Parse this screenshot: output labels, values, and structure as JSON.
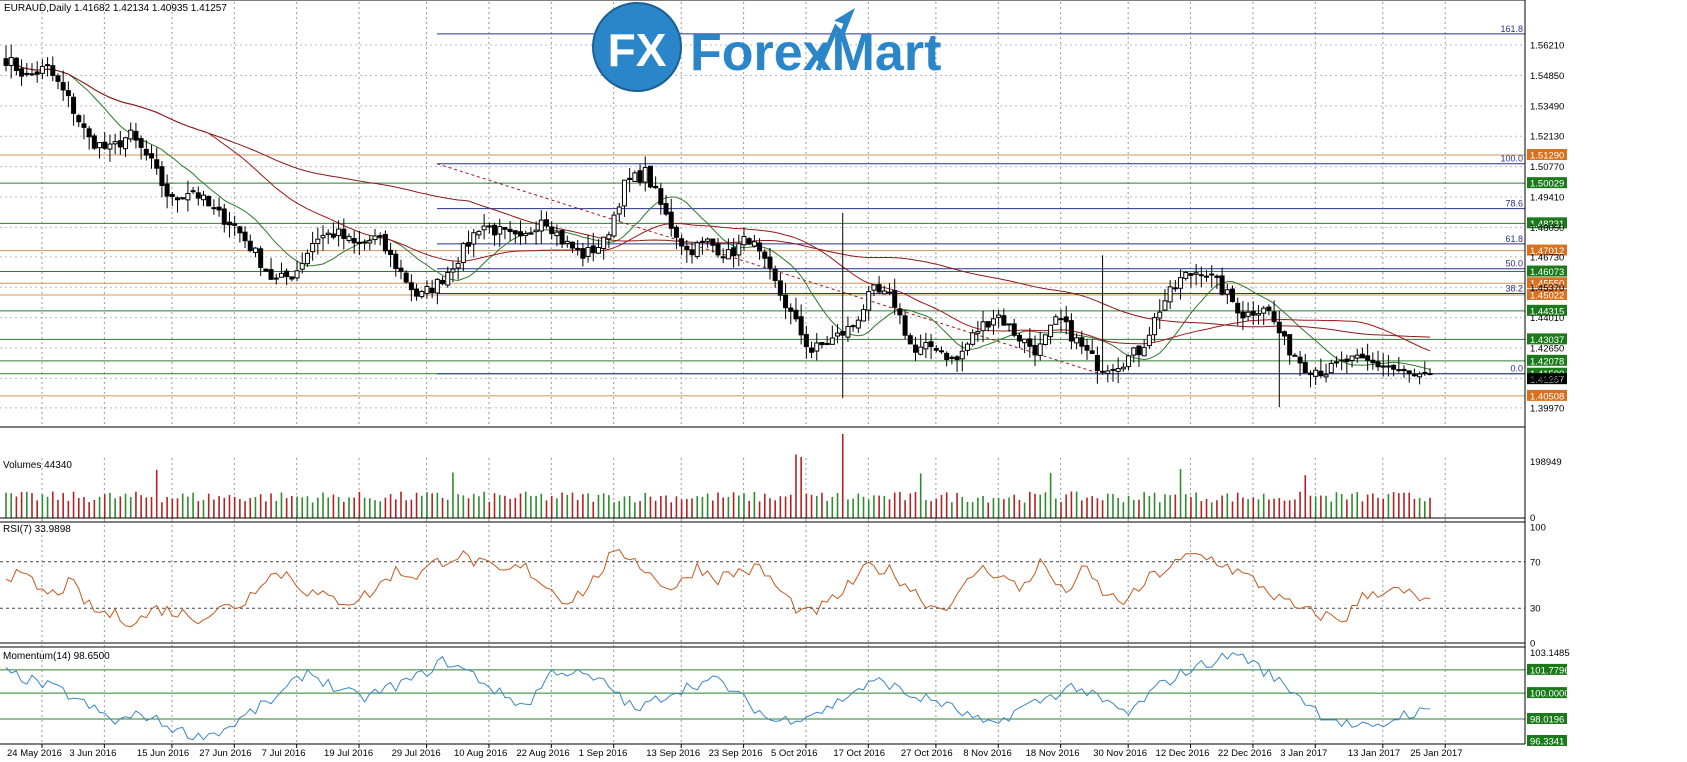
{
  "window": {
    "symbol_header": "EURAUD,Daily  1.41682 1.42134 1.40935 1.41257"
  },
  "logo": {
    "brand_text": "ForexMart",
    "badge_text": "FX"
  },
  "colors": {
    "price_line_bg": "#c0661e",
    "green_label": "#1a7a1a",
    "orange_label": "#d9701e",
    "blue_line": "#27318f",
    "green_line": "#2e7d32",
    "orange_line": "#d2955a",
    "ma_fast": "#2b7a2b",
    "ma_mid": "#a01818",
    "ma_slow": "#8b1a1a",
    "rsi_line": "#c05a20",
    "momentum_line": "#3b86c6",
    "volume_green": "#2e8b2e",
    "volume_red": "#b22222"
  },
  "chart_data": [
    {
      "type": "candlestick",
      "title": "EURAUD,Daily",
      "header_values": [
        "1.41682",
        "1.42134",
        "1.40935",
        "1.41257"
      ],
      "ylim": [
        1.3925,
        1.576
      ],
      "y_ticks": [
        "1.56210",
        "1.54850",
        "1.53490",
        "1.52130",
        "1.50770",
        "1.49410",
        "1.48050",
        "1.46730",
        "1.45370",
        "1.44010",
        "1.42650",
        "1.41290",
        "1.39970"
      ],
      "x_tick_labels": [
        "24 May 2016",
        "3 Jun 2016",
        "15 Jun 2016",
        "27 Jun 2016",
        "7 Jul 2016",
        "19 Jul 2016",
        "29 Jul 2016",
        "10 Aug 2016",
        "22 Aug 2016",
        "1 Sep 2016",
        "13 Sep 2016",
        "23 Sep 2016",
        "5 Oct 2016",
        "17 Oct 2016",
        "27 Oct 2016",
        "8 Nov 2016",
        "18 Nov 2016",
        "30 Nov 2016",
        "12 Dec 2016",
        "22 Dec 2016",
        "3 Jan 2017",
        "13 Jan 2017",
        "25 Jan 2017"
      ],
      "close_anchors": [
        1.556,
        1.548,
        1.552,
        1.538,
        1.52,
        1.515,
        1.522,
        1.51,
        1.492,
        1.498,
        1.488,
        1.482,
        1.47,
        1.456,
        1.46,
        1.476,
        1.478,
        1.472,
        1.476,
        1.462,
        1.449,
        1.456,
        1.468,
        1.482,
        1.478,
        1.474,
        1.486,
        1.474,
        1.468,
        1.474,
        1.5,
        1.505,
        1.485,
        1.47,
        1.474,
        1.468,
        1.476,
        1.46,
        1.442,
        1.425,
        1.43,
        1.436,
        1.452,
        1.448,
        1.424,
        1.428,
        1.42,
        1.434,
        1.442,
        1.432,
        1.425,
        1.44,
        1.428,
        1.418,
        1.42,
        1.426,
        1.446,
        1.458,
        1.462,
        1.452,
        1.441,
        1.446,
        1.428,
        1.418,
        1.416,
        1.421,
        1.42,
        1.418,
        1.414,
        1.413
      ],
      "horizontal_levels": [
        {
          "label": "1.51290",
          "style": "orange"
        },
        {
          "label": "1.50029",
          "style": "green"
        },
        {
          "label": "1.48231",
          "style": "green"
        },
        {
          "label": "1.47012",
          "style": "orange"
        },
        {
          "label": "1.46073",
          "style": "green"
        },
        {
          "label": "1.45550",
          "style": "orange"
        },
        {
          "label": "1.45022",
          "style": "orange"
        },
        {
          "label": "1.44315",
          "style": "green"
        },
        {
          "label": "1.43037",
          "style": "green"
        },
        {
          "label": "1.42078",
          "style": "green"
        },
        {
          "label": "1.41500",
          "style": "green"
        },
        {
          "label": "1.41257",
          "style": "current"
        },
        {
          "label": "1.40508",
          "style": "orange"
        }
      ],
      "fibonacci": {
        "levels": [
          "161.8",
          "100.0",
          "78.6",
          "61.8",
          "50.0",
          "38.2",
          "0.0"
        ],
        "price_high": 1.509,
        "price_low": 1.415
      },
      "moving_averages": [
        "ma_fast",
        "ma_mid",
        "ma_slow"
      ]
    },
    {
      "type": "bar",
      "title": "Volumes 44340",
      "y_ticks": [
        "198949",
        "0"
      ],
      "ylim": [
        0,
        198949
      ],
      "spike_indices": [
        29,
        86,
        152,
        153,
        176,
        201,
        226,
        250
      ],
      "typical_range": [
        35000,
        60000
      ]
    },
    {
      "type": "line",
      "title": "RSI(7) 33.9898",
      "ylim": [
        0,
        100
      ],
      "y_ticks": [
        "100",
        "70",
        "30",
        "0"
      ],
      "levels": [
        70,
        30
      ],
      "anchor_values": [
        60,
        55,
        40,
        52,
        28,
        24,
        18,
        30,
        26,
        22,
        30,
        34,
        58,
        60,
        44,
        38,
        36,
        44,
        62,
        58,
        70,
        76,
        68,
        60,
        66,
        50,
        36,
        48,
        74,
        76,
        56,
        46,
        66,
        56,
        62,
        64,
        42,
        24,
        32,
        48,
        66,
        62,
        46,
        30,
        36,
        64,
        60,
        46,
        70,
        42,
        64,
        40,
        36,
        56,
        66,
        76,
        72,
        62,
        52,
        38,
        28,
        24,
        20,
        42,
        46,
        42,
        34
      ]
    },
    {
      "type": "line",
      "title": "Momentum(14) 98.6500",
      "ylim": [
        96.3341,
        103.1485
      ],
      "y_ticks": [
        "103.1485",
        "101.7796",
        "100.0000",
        "98.0196",
        "96.3341"
      ],
      "levels": [
        101.7796,
        100.0,
        98.0196
      ],
      "anchor_values": [
        101.6,
        100.9,
        100.2,
        99.0,
        97.8,
        98.4,
        97.4,
        96.6,
        97.2,
        98.6,
        99.8,
        101.7,
        100.4,
        99.6,
        100.4,
        101.2,
        102.5,
        101.5,
        100.0,
        99.0,
        101.8,
        101.4,
        100.6,
        98.6,
        99.8,
        100.6,
        101.0,
        99.4,
        97.8,
        98.2,
        98.8,
        100.2,
        101.0,
        99.8,
        99.4,
        98.4,
        97.4,
        98.8,
        99.6,
        100.6,
        99.4,
        98.4,
        100.4,
        101.6,
        102.4,
        103.1,
        101.6,
        100.2,
        98.4,
        97.6,
        97.2,
        98.4,
        98.6
      ]
    }
  ]
}
